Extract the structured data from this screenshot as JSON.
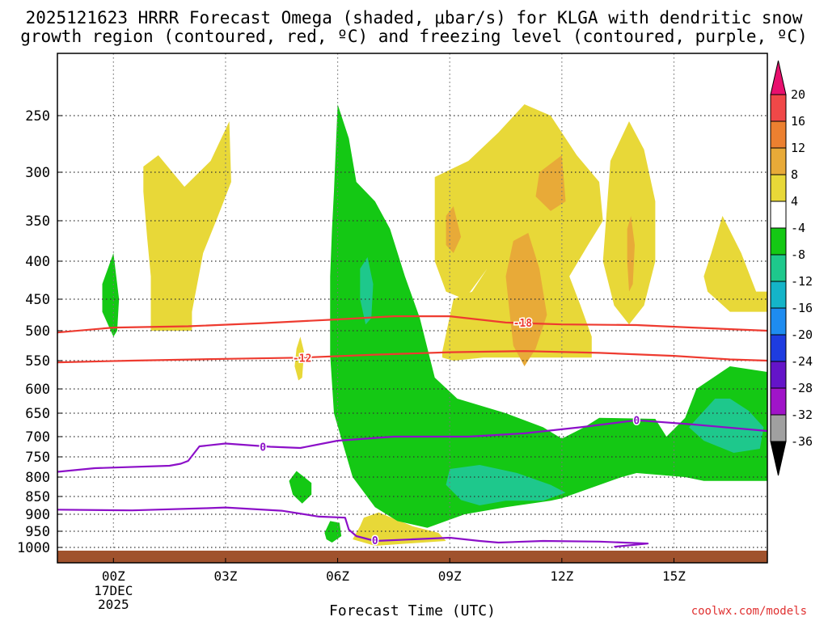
{
  "title_line1": "2025121623 HRRR Forecast Omega (shaded, μbar/s) for KLGA with dendritic snow",
  "title_line2": "growth region (contoured, red, ºC) and freezing level (contoured, purple, ºC)",
  "xaxis_label": "Forecast Time (UTC)",
  "credit": "coolwx.com/models",
  "chart_data": {
    "type": "heatmap",
    "y_axis": {
      "quantity": "pressure (hPa)",
      "ticks": [
        250,
        300,
        350,
        400,
        450,
        500,
        550,
        600,
        650,
        700,
        750,
        800,
        850,
        900,
        950,
        1000
      ]
    },
    "x_axis": {
      "quantity": "forecast valid time (UTC)",
      "range_hours": [
        -1.5,
        17.5
      ],
      "ticks": [
        {
          "hour": 0,
          "label": "00Z",
          "sub": [
            "17DEC",
            "2025"
          ]
        },
        {
          "hour": 3,
          "label": "03Z",
          "sub": []
        },
        {
          "hour": 6,
          "label": "06Z",
          "sub": []
        },
        {
          "hour": 9,
          "label": "09Z",
          "sub": []
        },
        {
          "hour": 12,
          "label": "12Z",
          "sub": []
        },
        {
          "hour": 15,
          "label": "15Z",
          "sub": []
        }
      ]
    },
    "grid": true,
    "colorbar": {
      "labels": [
        20,
        16,
        12,
        8,
        4,
        -4,
        -8,
        -12,
        -16,
        -20,
        -24,
        -28,
        -32,
        -36
      ],
      "bins": [
        {
          "range": "> 20",
          "color": "#e8106e"
        },
        {
          "range": "16 to 20",
          "color": "#f04848"
        },
        {
          "range": "12 to 16",
          "color": "#ec8030"
        },
        {
          "range": "8 to 12",
          "color": "#e8aa38"
        },
        {
          "range": "4 to 8",
          "color": "#e8d838"
        },
        {
          "range": "-4 to 4",
          "color": "#ffffff"
        },
        {
          "range": "-8 to -4",
          "color": "#14c814"
        },
        {
          "range": "-12 to -8",
          "color": "#1ec88c"
        },
        {
          "range": "-16 to -12",
          "color": "#14b4c8"
        },
        {
          "range": "-20 to -16",
          "color": "#1e8cf0"
        },
        {
          "range": "-24 to -20",
          "color": "#1e3ce0"
        },
        {
          "range": "-28 to -24",
          "color": "#6414c8"
        },
        {
          "range": "-32 to -28",
          "color": "#a014c8"
        },
        {
          "range": "-36 to -32",
          "color": "#a0a0a0"
        },
        {
          "range": "< -36",
          "color": "#000000"
        }
      ]
    },
    "shaded_regions": [
      {
        "value_range": "4 to 8",
        "points": [
          [
            0.8,
            295
          ],
          [
            1.2,
            285
          ],
          [
            1.9,
            315
          ],
          [
            2.6,
            290
          ],
          [
            3.1,
            255
          ],
          [
            3.15,
            310
          ],
          [
            2.8,
            345
          ],
          [
            2.4,
            390
          ],
          [
            2.1,
            470
          ],
          [
            2.1,
            500
          ],
          [
            1.0,
            500
          ],
          [
            1.0,
            420
          ],
          [
            0.9,
            370
          ],
          [
            0.8,
            320
          ]
        ]
      },
      {
        "value_range": "4 to 8",
        "points": [
          [
            8.6,
            305
          ],
          [
            9.5,
            290
          ],
          [
            10.3,
            265
          ],
          [
            11.0,
            240
          ],
          [
            11.7,
            250
          ],
          [
            12.4,
            285
          ],
          [
            13.0,
            310
          ],
          [
            13.1,
            350
          ],
          [
            12.7,
            380
          ],
          [
            12.2,
            420
          ],
          [
            12.5,
            460
          ],
          [
            12.8,
            510
          ],
          [
            12.8,
            545
          ],
          [
            11.2,
            545
          ],
          [
            9.9,
            545
          ],
          [
            9.1,
            550
          ],
          [
            8.8,
            545
          ],
          [
            8.8,
            535
          ],
          [
            9.1,
            450
          ],
          [
            9.6,
            440
          ],
          [
            10.0,
            410
          ],
          [
            9.4,
            450
          ],
          [
            8.9,
            440
          ],
          [
            8.6,
            400
          ],
          [
            8.6,
            330
          ]
        ]
      },
      {
        "value_range": "8 to 12",
        "points": [
          [
            11.4,
            300
          ],
          [
            12.0,
            285
          ],
          [
            12.1,
            330
          ],
          [
            11.7,
            340
          ],
          [
            11.3,
            325
          ]
        ]
      },
      {
        "value_range": "8 to 12",
        "points": [
          [
            10.7,
            375
          ],
          [
            11.1,
            365
          ],
          [
            11.4,
            410
          ],
          [
            11.6,
            475
          ],
          [
            11.3,
            530
          ],
          [
            11.0,
            560
          ],
          [
            10.7,
            525
          ],
          [
            10.6,
            470
          ],
          [
            10.5,
            420
          ]
        ]
      },
      {
        "value_range": "8 to 12",
        "points": [
          [
            8.9,
            345
          ],
          [
            9.1,
            335
          ],
          [
            9.3,
            370
          ],
          [
            9.1,
            390
          ],
          [
            8.9,
            380
          ]
        ]
      },
      {
        "value_range": "4 to 8",
        "points": [
          [
            13.3,
            290
          ],
          [
            13.8,
            255
          ],
          [
            14.2,
            280
          ],
          [
            14.5,
            330
          ],
          [
            14.5,
            400
          ],
          [
            14.2,
            460
          ],
          [
            13.8,
            490
          ],
          [
            13.4,
            460
          ],
          [
            13.1,
            400
          ],
          [
            13.2,
            340
          ]
        ]
      },
      {
        "value_range": "8 to 12",
        "points": [
          [
            13.75,
            360
          ],
          [
            13.85,
            345
          ],
          [
            13.95,
            380
          ],
          [
            13.9,
            430
          ],
          [
            13.8,
            440
          ],
          [
            13.75,
            400
          ]
        ]
      },
      {
        "value_range": "4 to 8",
        "points": [
          [
            16.0,
            390
          ],
          [
            16.3,
            345
          ],
          [
            16.8,
            390
          ],
          [
            17.2,
            440
          ],
          [
            17.5,
            440
          ],
          [
            17.5,
            470
          ],
          [
            16.5,
            470
          ],
          [
            15.9,
            440
          ],
          [
            15.8,
            420
          ]
        ]
      },
      {
        "value_range": "4 to 8",
        "points": [
          [
            4.9,
            530
          ],
          [
            5.0,
            510
          ],
          [
            5.1,
            535
          ],
          [
            5.05,
            580
          ],
          [
            4.95,
            585
          ],
          [
            4.85,
            560
          ]
        ]
      },
      {
        "value_range": "4 to 8",
        "points": [
          [
            6.7,
            910
          ],
          [
            7.1,
            895
          ],
          [
            8.0,
            935
          ],
          [
            8.7,
            955
          ],
          [
            8.9,
            980
          ],
          [
            7.0,
            995
          ],
          [
            6.4,
            975
          ],
          [
            6.6,
            935
          ]
        ]
      },
      {
        "value_range": "-8 to -4",
        "points": [
          [
            -0.3,
            430
          ],
          [
            0.0,
            390
          ],
          [
            0.15,
            450
          ],
          [
            0.1,
            500
          ],
          [
            0.0,
            510
          ],
          [
            -0.3,
            470
          ]
        ]
      },
      {
        "value_range": "-8 to -4",
        "points": [
          [
            5.9,
            320
          ],
          [
            6.0,
            240
          ],
          [
            6.3,
            270
          ],
          [
            6.5,
            310
          ],
          [
            7.0,
            330
          ],
          [
            7.4,
            360
          ],
          [
            7.8,
            420
          ],
          [
            8.2,
            480
          ],
          [
            8.6,
            580
          ],
          [
            9.2,
            620
          ],
          [
            10.5,
            650
          ],
          [
            11.5,
            680
          ],
          [
            12.0,
            705
          ],
          [
            12.6,
            680
          ],
          [
            13.0,
            660
          ],
          [
            14.5,
            662
          ],
          [
            14.8,
            700
          ],
          [
            15.3,
            660
          ],
          [
            15.6,
            600
          ],
          [
            16.5,
            560
          ],
          [
            17.5,
            570
          ],
          [
            17.5,
            810
          ],
          [
            15.8,
            810
          ],
          [
            15.3,
            800
          ],
          [
            14.0,
            790
          ],
          [
            13.6,
            800
          ],
          [
            12.0,
            855
          ],
          [
            11.7,
            862
          ],
          [
            10.5,
            880
          ],
          [
            9.4,
            900
          ],
          [
            8.4,
            940
          ],
          [
            7.6,
            920
          ],
          [
            7.0,
            880
          ],
          [
            6.4,
            800
          ],
          [
            5.9,
            650
          ],
          [
            5.8,
            540
          ],
          [
            5.8,
            420
          ],
          [
            5.85,
            360
          ]
        ]
      },
      {
        "value_range": "-12 to -8",
        "points": [
          [
            6.6,
            410
          ],
          [
            6.8,
            395
          ],
          [
            6.95,
            430
          ],
          [
            6.9,
            480
          ],
          [
            6.75,
            490
          ],
          [
            6.6,
            450
          ]
        ]
      },
      {
        "value_range": "-12 to -8",
        "points": [
          [
            9.0,
            780
          ],
          [
            9.8,
            770
          ],
          [
            10.8,
            790
          ],
          [
            11.7,
            820
          ],
          [
            12.1,
            840
          ],
          [
            11.5,
            862
          ],
          [
            10.5,
            862
          ],
          [
            9.8,
            875
          ],
          [
            9.3,
            860
          ],
          [
            8.9,
            820
          ]
        ]
      },
      {
        "value_range": "-12 to -8",
        "points": [
          [
            15.4,
            680
          ],
          [
            16.1,
            620
          ],
          [
            16.5,
            620
          ],
          [
            17.0,
            645
          ],
          [
            17.4,
            680
          ],
          [
            17.3,
            730
          ],
          [
            16.6,
            740
          ],
          [
            15.8,
            710
          ]
        ]
      },
      {
        "value_range": "-8 to -4",
        "points": [
          [
            4.7,
            810
          ],
          [
            4.9,
            785
          ],
          [
            5.3,
            815
          ],
          [
            5.3,
            845
          ],
          [
            5.05,
            870
          ],
          [
            4.8,
            845
          ]
        ]
      },
      {
        "value_range": "-8 to -4",
        "points": [
          [
            5.65,
            955
          ],
          [
            5.8,
            920
          ],
          [
            6.05,
            925
          ],
          [
            6.1,
            965
          ],
          [
            5.85,
            985
          ],
          [
            5.7,
            975
          ]
        ]
      }
    ],
    "contours": [
      {
        "field": "temperature",
        "color": "#ee3b30",
        "level_C": -18,
        "points": [
          [
            -1.5,
            503
          ],
          [
            0.0,
            495
          ],
          [
            2.0,
            493
          ],
          [
            4.0,
            488
          ],
          [
            6.0,
            482
          ],
          [
            7.5,
            477
          ],
          [
            9.0,
            477
          ],
          [
            10.5,
            487
          ],
          [
            12.0,
            490
          ],
          [
            14.0,
            491
          ],
          [
            15.5,
            495
          ],
          [
            17.5,
            500
          ]
        ]
      },
      {
        "field": "temperature",
        "color": "#ee3b30",
        "level_C": -12,
        "points": [
          [
            -1.5,
            553
          ],
          [
            0.5,
            550
          ],
          [
            3.0,
            547
          ],
          [
            5.0,
            545
          ],
          [
            7.0,
            540
          ],
          [
            9.0,
            536
          ],
          [
            11.0,
            534
          ],
          [
            13.0,
            537
          ],
          [
            15.0,
            542
          ],
          [
            16.5,
            548
          ],
          [
            17.5,
            550
          ]
        ]
      },
      {
        "field": "temperature",
        "color": "#8c10c8",
        "level_C": 0,
        "points": [
          [
            -1.5,
            787
          ],
          [
            -0.5,
            778
          ],
          [
            1.5,
            772
          ],
          [
            1.8,
            767
          ],
          [
            2.0,
            760
          ],
          [
            2.3,
            724
          ],
          [
            3.0,
            717
          ],
          [
            4.2,
            725
          ],
          [
            5.0,
            728
          ],
          [
            6.0,
            710
          ],
          [
            7.5,
            700
          ],
          [
            9.5,
            700
          ],
          [
            11.0,
            693
          ],
          [
            12.5,
            680
          ],
          [
            14.0,
            665
          ],
          [
            15.5,
            674
          ],
          [
            17.5,
            688
          ]
        ]
      },
      {
        "field": "temperature",
        "color": "#8c10c8",
        "level_C": 0,
        "points": [
          [
            -1.5,
            887
          ],
          [
            0.5,
            889
          ],
          [
            2.5,
            883
          ],
          [
            3.0,
            881
          ],
          [
            4.5,
            890
          ],
          [
            5.5,
            907
          ],
          [
            6.2,
            910
          ],
          [
            6.3,
            945
          ],
          [
            6.5,
            965
          ],
          [
            7.0,
            980
          ],
          [
            8.0,
            975
          ],
          [
            9.0,
            970
          ],
          [
            9.8,
            980
          ],
          [
            10.3,
            985
          ],
          [
            11.5,
            980
          ],
          [
            13.0,
            982
          ],
          [
            14.3,
            988
          ],
          [
            13.4,
            998
          ]
        ]
      }
    ],
    "contour_labels": [
      {
        "text": "-18",
        "hour": 10.95,
        "p": 487,
        "color": "#ee3b30"
      },
      {
        "text": "-12",
        "hour": 5.05,
        "p": 545,
        "color": "#ee3b30"
      },
      {
        "text": "0",
        "hour": 4.0,
        "p": 725,
        "color": "#8c10c8"
      },
      {
        "text": "0",
        "hour": 14.0,
        "p": 665,
        "color": "#8c10c8"
      },
      {
        "text": "0",
        "hour": 7.0,
        "p": 978,
        "color": "#8c10c8"
      }
    ]
  }
}
